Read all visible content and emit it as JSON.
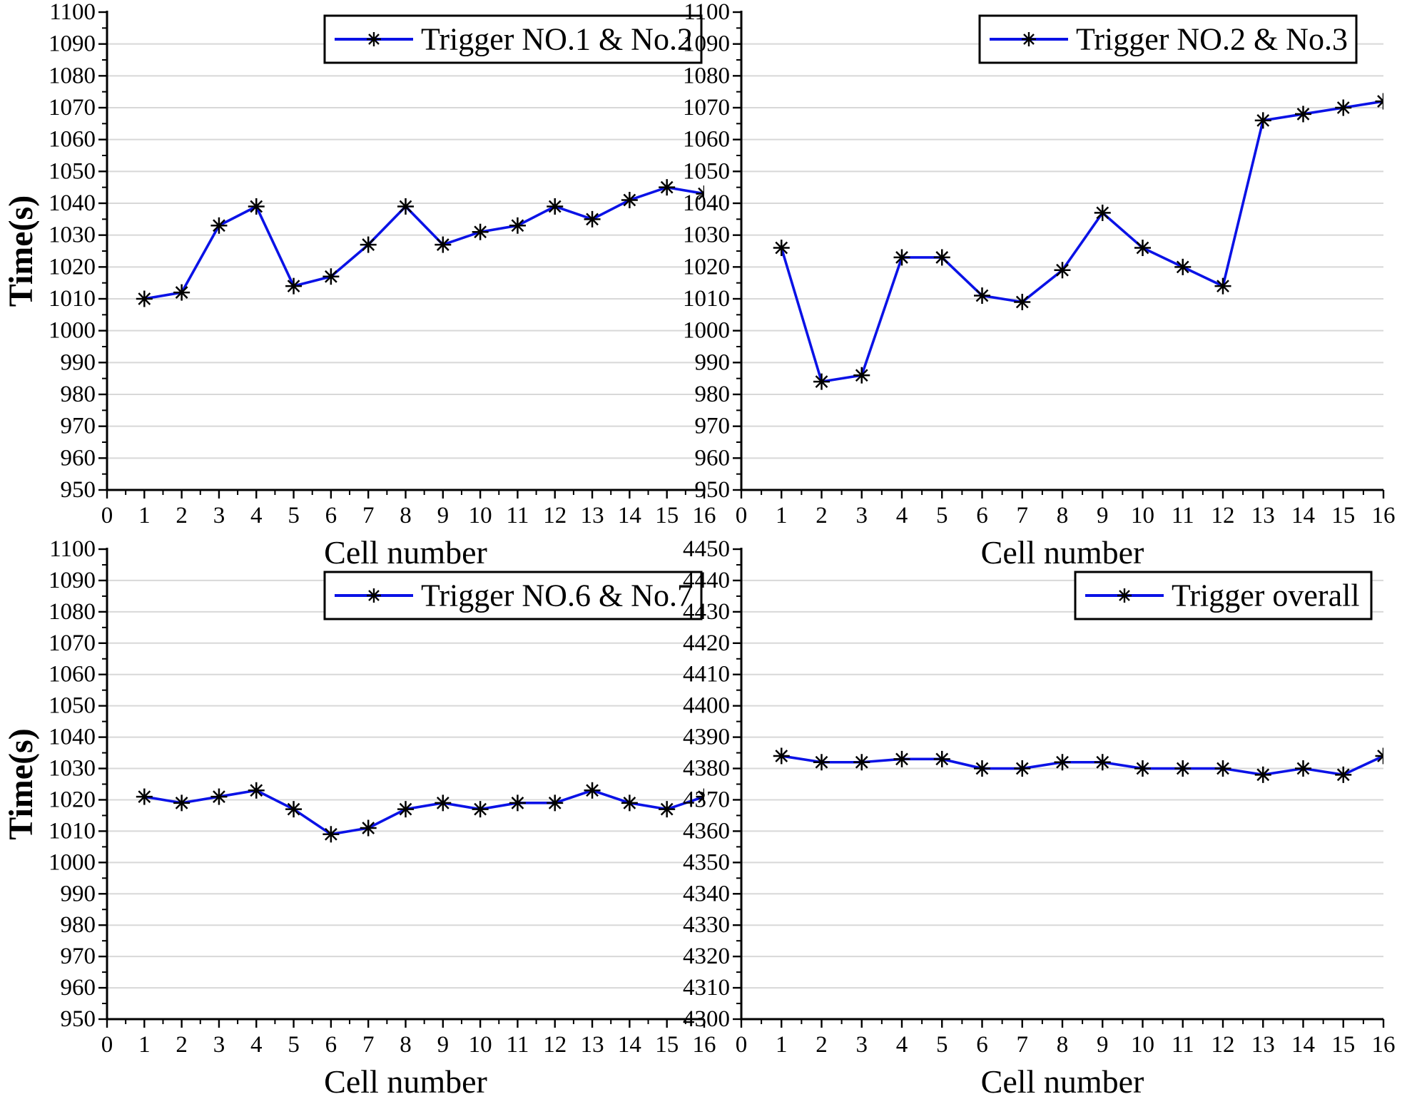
{
  "style": {
    "line_color": "#0A12E6",
    "marker_color": "#000000",
    "grid_color": "#D8D8D8",
    "axis_color": "#000000",
    "background": "#FFFFFF",
    "legend_border_color": "#000000",
    "legend_fill": "#FFFFFF"
  },
  "chart_data": [
    {
      "id": "top-left",
      "type": "line",
      "legend": "Trigger NO.1 & No.2",
      "xlabel": "Cell number",
      "ylabel": "Time(s)",
      "x": [
        1,
        2,
        3,
        4,
        5,
        6,
        7,
        8,
        9,
        10,
        11,
        12,
        13,
        14,
        15,
        16
      ],
      "values": [
        1010,
        1012,
        1033,
        1039,
        1014,
        1017,
        1027,
        1039,
        1027,
        1031,
        1033,
        1039,
        1035,
        1041,
        1045,
        1043
      ],
      "xlim": [
        0,
        16
      ],
      "ylim": [
        950,
        1100
      ],
      "xtick_step": 1,
      "xtick_minor": 0.5,
      "ytick_step": 10,
      "ytick_minor": 5,
      "grid": "horizontal-major",
      "legend_position": "top-right-inside"
    },
    {
      "id": "top-right",
      "type": "line",
      "legend": "Trigger NO.2 & No.3",
      "xlabel": "Cell number",
      "ylabel": "",
      "x": [
        1,
        2,
        3,
        4,
        5,
        6,
        7,
        8,
        9,
        10,
        11,
        12,
        13,
        14,
        15,
        16
      ],
      "values": [
        1026,
        984,
        986,
        1023,
        1023,
        1011,
        1009,
        1019,
        1037,
        1026,
        1020,
        1014,
        1066,
        1068,
        1070,
        1072
      ],
      "xlim": [
        0,
        16
      ],
      "ylim": [
        950,
        1100
      ],
      "xtick_step": 1,
      "xtick_minor": 0.5,
      "ytick_step": 10,
      "ytick_minor": 5,
      "grid": "horizontal-major",
      "legend_position": "top-right-inside"
    },
    {
      "id": "bottom-left",
      "type": "line",
      "legend": "Trigger NO.6 & No.7",
      "xlabel": "Cell number",
      "ylabel": "Time(s)",
      "x": [
        1,
        2,
        3,
        4,
        5,
        6,
        7,
        8,
        9,
        10,
        11,
        12,
        13,
        14,
        15,
        16
      ],
      "values": [
        1021,
        1019,
        1021,
        1023,
        1017,
        1009,
        1011,
        1017,
        1019,
        1017,
        1019,
        1019,
        1023,
        1019,
        1017,
        1021
      ],
      "xlim": [
        0,
        16
      ],
      "ylim": [
        950,
        1100
      ],
      "xtick_step": 1,
      "xtick_minor": 0.5,
      "ytick_step": 10,
      "ytick_minor": 5,
      "grid": "horizontal-major",
      "legend_position": "top-right-inside"
    },
    {
      "id": "bottom-right",
      "type": "line",
      "legend": "Trigger overall",
      "xlabel": "Cell number",
      "ylabel": "",
      "x": [
        1,
        2,
        3,
        4,
        5,
        6,
        7,
        8,
        9,
        10,
        11,
        12,
        13,
        14,
        15,
        16
      ],
      "values": [
        4384,
        4382,
        4382,
        4383,
        4383,
        4380,
        4380,
        4382,
        4382,
        4380,
        4380,
        4380,
        4378,
        4380,
        4378,
        4384
      ],
      "xlim": [
        0,
        16
      ],
      "ylim": [
        4300,
        4450
      ],
      "xtick_step": 1,
      "xtick_minor": 0.5,
      "ytick_step": 10,
      "ytick_minor": 5,
      "grid": "horizontal-major",
      "legend_position": "top-right-inside"
    }
  ]
}
